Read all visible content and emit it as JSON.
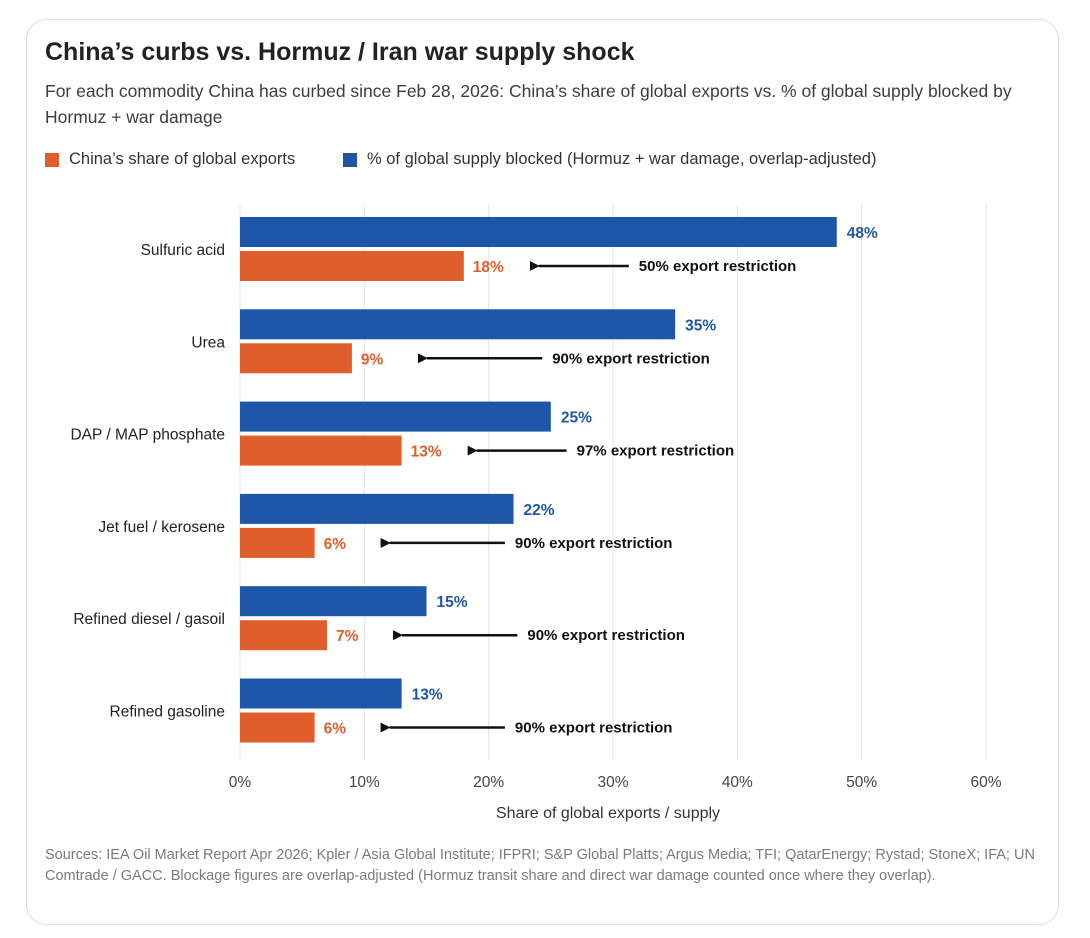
{
  "colors": {
    "china": "#e05d2c",
    "blocked": "#1f57a8",
    "grid": "#e3e3e3",
    "arrow": "#111111"
  },
  "header": {
    "title": "China’s curbs vs. Hormuz / Iran war supply shock",
    "subtitle": "For each commodity China has curbed since Feb 28, 2026: China’s share of global exports vs. % of global supply blocked by Hormuz + war damage"
  },
  "legend": {
    "china_label": "China’s share of global exports",
    "blocked_label": "% of global supply blocked (Hormuz + war damage, overlap-adjusted)"
  },
  "chart_data": {
    "type": "bar",
    "orientation": "horizontal",
    "categories": [
      "Sulfuric acid",
      "Urea",
      "DAP / MAP phosphate",
      "Jet fuel / kerosene",
      "Refined diesel / gasoil",
      "Refined gasoline"
    ],
    "series": [
      {
        "name": "% of global supply blocked (Hormuz + war damage, overlap-adjusted)",
        "key": "blocked",
        "values": [
          48,
          35,
          25,
          22,
          15,
          13
        ],
        "labels": [
          "48%",
          "35%",
          "25%",
          "22%",
          "15%",
          "13%"
        ]
      },
      {
        "name": "China’s share of global exports",
        "key": "china",
        "values": [
          18,
          9,
          13,
          6,
          7,
          6
        ],
        "labels": [
          "18%",
          "9%",
          "13%",
          "6%",
          "7%",
          "6%"
        ]
      }
    ],
    "annotations": [
      "50% export restriction",
      "90% export restriction",
      "97% export restriction",
      "90% export restriction",
      "90% export restriction",
      "90% export restriction"
    ],
    "xlabel": "Share of global exports / supply",
    "xlim": [
      0,
      60
    ],
    "xticks": [
      0,
      10,
      20,
      30,
      40,
      50,
      60
    ],
    "xtick_labels": [
      "0%",
      "10%",
      "20%",
      "30%",
      "40%",
      "50%",
      "60%"
    ],
    "grid": true,
    "legend_position": "top"
  },
  "footer": {
    "sources": "Sources: IEA Oil Market Report Apr 2026; Kpler / Asia Global Institute; IFPRI; S&P Global Platts; Argus Media; TFI; QatarEnergy; Rystad; StoneX; IFA; UN Comtrade / GACC. Blockage figures are overlap-adjusted (Hormuz transit share and direct war damage counted once where they overlap)."
  }
}
